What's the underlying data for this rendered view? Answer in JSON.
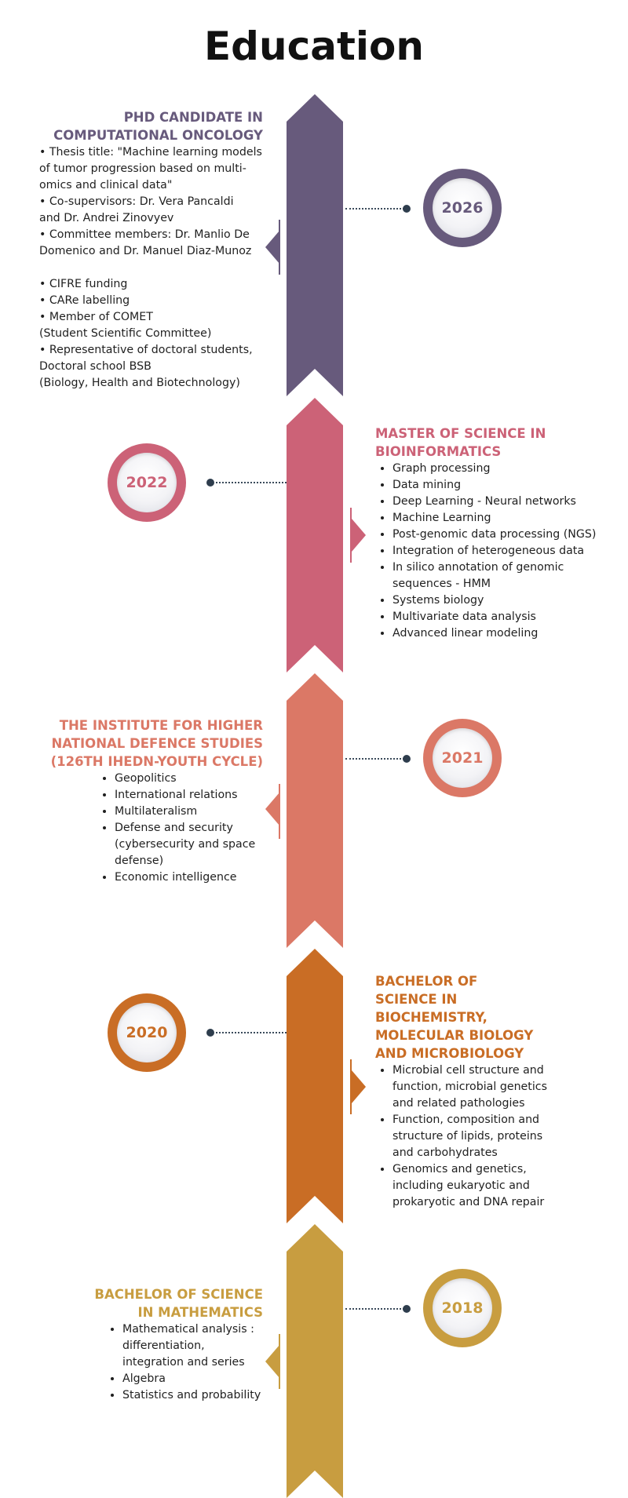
{
  "page": {
    "title": "Education"
  },
  "colors": {
    "phd": "#675a7c",
    "master": "#cc6277",
    "ihedn": "#db7866",
    "bachelor_bio": "#c96d25",
    "bachelor_math": "#c89d40"
  },
  "phd": {
    "year": "2026",
    "heading1": "PHD CANDIDATE IN",
    "heading2": "COMPUTATIONAL ONCOLOGY",
    "lines": [
      "• Thesis title: \"Machine learning models",
      "of tumor progression based on multi-",
      "omics and clinical data\"",
      "• Co-supervisors: Dr. Vera Pancaldi",
      "and Dr. Andrei Zinovyev",
      "• Committee members: Dr. Manlio De",
      "Domenico and Dr. Manuel Diaz-Munoz"
    ],
    "lines2": [
      "• CIFRE funding",
      "• CARe  labelling",
      "• Member of COMET",
      "(Student Scientific Committee)",
      "• Representative of doctoral students,",
      "Doctoral school BSB",
      "(Biology, Health and Biotechnology)"
    ]
  },
  "master": {
    "year": "2022",
    "heading1": "MASTER OF SCIENCE IN",
    "heading2": "BIOINFORMATICS",
    "items": [
      "Graph processing",
      "Data mining",
      "Deep Learning - Neural networks",
      "Machine Learning",
      "Post-genomic data processing (NGS)",
      "Integration of heterogeneous data",
      "In silico annotation of genomic sequences - HMM",
      "Systems biology",
      "Multivariate data analysis",
      "Advanced linear modeling"
    ]
  },
  "ihedn": {
    "year": "2021",
    "heading1": "THE INSTITUTE FOR HIGHER",
    "heading2": "NATIONAL DEFENCE STUDIES",
    "heading3": "(126TH IHEDN-YOUTH CYCLE)",
    "items": [
      "Geopolitics",
      "International relations",
      "Multilateralism",
      "Defense and security (cybersecurity and space defense)",
      "Economic intelligence"
    ]
  },
  "bachelor_bio": {
    "year": "2020",
    "heading_lines": [
      "BACHELOR OF",
      "SCIENCE IN",
      "BIOCHEMISTRY,",
      "MOLECULAR BIOLOGY",
      "AND MICROBIOLOGY"
    ],
    "items": [
      "Microbial cell structure and function, microbial genetics and related pathologies",
      "Function, composition and structure of lipids, proteins and carbohydrates",
      " Genomics and genetics, including eukaryotic and prokaryotic and DNA repair"
    ]
  },
  "bachelor_math": {
    "year": "2018",
    "heading1": "BACHELOR OF SCIENCE",
    "heading2": "IN MATHEMATICS",
    "items": [
      "Mathematical analysis : differentiation, integration and series",
      "Algebra",
      "Statistics and probability"
    ]
  }
}
